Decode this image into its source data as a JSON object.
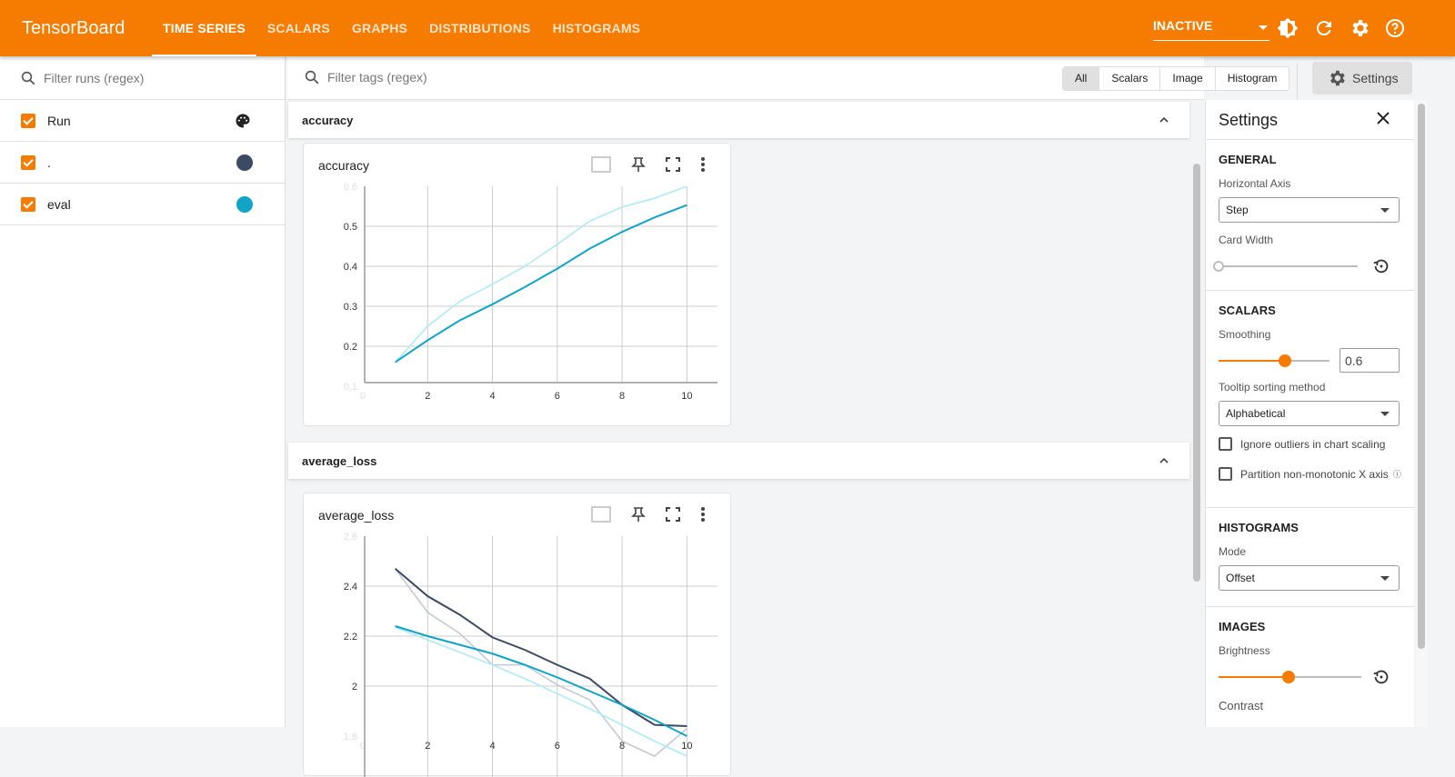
{
  "header": {
    "brand": "TensorBoard",
    "tabs": [
      {
        "label": "TIME SERIES",
        "active": true
      },
      {
        "label": "SCALARS"
      },
      {
        "label": "GRAPHS"
      },
      {
        "label": "DISTRIBUTIONS"
      },
      {
        "label": "HISTOGRAMS"
      }
    ],
    "status": "INACTIVE",
    "icons": [
      "brightness-icon",
      "refresh-icon",
      "gear-icon",
      "help-icon"
    ],
    "color": "#f57c00"
  },
  "runs": {
    "filter_placeholder": "Filter runs (regex)",
    "header": "Run",
    "items": [
      {
        "label": ".",
        "color": "#3c4a63",
        "checked": true
      },
      {
        "label": "eval",
        "color": "#12a4c6",
        "checked": true
      }
    ]
  },
  "toolbar": {
    "filter_placeholder": "Filter tags (regex)",
    "types": [
      "All",
      "Scalars",
      "Image",
      "Histogram"
    ],
    "selected_type": "All",
    "settings_label": "Settings"
  },
  "groups": [
    {
      "name": "accuracy"
    },
    {
      "name": "average_loss"
    }
  ],
  "chart_data": [
    {
      "type": "line",
      "title": "accuracy",
      "xlim": [
        0,
        11
      ],
      "ylim": [
        0.1,
        0.6
      ],
      "xticks": [
        "0",
        "2",
        "4",
        "6",
        "8",
        "10"
      ],
      "yticks": [
        "0.1",
        "0.2",
        "0.3",
        "0.4",
        "0.5",
        "0.6"
      ],
      "grid": true,
      "x": [
        1,
        2,
        3,
        4,
        5,
        6,
        7,
        8,
        9,
        10
      ],
      "series": [
        {
          "run": "eval",
          "kind": "raw",
          "color": "#aeeaf5",
          "values": [
            0.16,
            0.25,
            0.313,
            0.355,
            0.4,
            0.455,
            0.513,
            0.548,
            0.57,
            0.6
          ]
        },
        {
          "run": "eval",
          "kind": "smoothed",
          "color": "#12a4c6",
          "values": [
            0.16,
            0.215,
            0.265,
            0.305,
            0.348,
            0.394,
            0.444,
            0.486,
            0.522,
            0.553
          ]
        }
      ]
    },
    {
      "type": "line",
      "title": "average_loss",
      "xlim": [
        0,
        11
      ],
      "ylim": [
        1.8,
        2.6
      ],
      "xticks": [
        "0",
        "2",
        "4",
        "6",
        "8",
        "10"
      ],
      "yticks": [
        "1.8",
        "2",
        "2.2",
        "2.4",
        "2.6"
      ],
      "grid": true,
      "x": [
        1,
        2,
        3,
        4,
        5,
        6,
        7,
        8,
        9,
        10
      ],
      "series": [
        {
          "run": ".",
          "kind": "raw",
          "color": "#c5c9d3",
          "values": [
            2.47,
            2.295,
            2.21,
            2.085,
            2.085,
            2.005,
            1.945,
            1.78,
            1.72,
            1.83
          ]
        },
        {
          "run": "eval",
          "kind": "raw",
          "color": "#aeeaf5",
          "values": [
            2.235,
            2.185,
            2.135,
            2.085,
            2.03,
            1.97,
            1.91,
            1.845,
            1.78,
            1.72
          ]
        },
        {
          "run": ".",
          "kind": "smoothed",
          "color": "#3c4a63",
          "values": [
            2.47,
            2.36,
            2.285,
            2.195,
            2.145,
            2.085,
            2.03,
            1.925,
            1.845,
            1.84
          ]
        },
        {
          "run": "eval",
          "kind": "smoothed",
          "color": "#12a4c6",
          "values": [
            2.24,
            2.2,
            2.165,
            2.13,
            2.085,
            2.035,
            1.98,
            1.925,
            1.865,
            1.8
          ]
        }
      ]
    }
  ],
  "settings": {
    "title": "Settings",
    "general": {
      "heading": "GENERAL",
      "horizontal_axis_label": "Horizontal Axis",
      "horizontal_axis": "Step",
      "card_width_label": "Card Width",
      "card_width": 0
    },
    "scalars": {
      "heading": "SCALARS",
      "smoothing_label": "Smoothing",
      "smoothing": "0.6",
      "tooltip_label": "Tooltip sorting method",
      "tooltip": "Alphabetical",
      "ignore_outliers": "Ignore outliers in chart scaling",
      "partition": "Partition non-monotonic X axis"
    },
    "histograms": {
      "heading": "HISTOGRAMS",
      "mode_label": "Mode",
      "mode": "Offset"
    },
    "images": {
      "heading": "IMAGES",
      "brightness_label": "Brightness",
      "brightness": 0.5,
      "contrast_label": "Contrast"
    }
  }
}
